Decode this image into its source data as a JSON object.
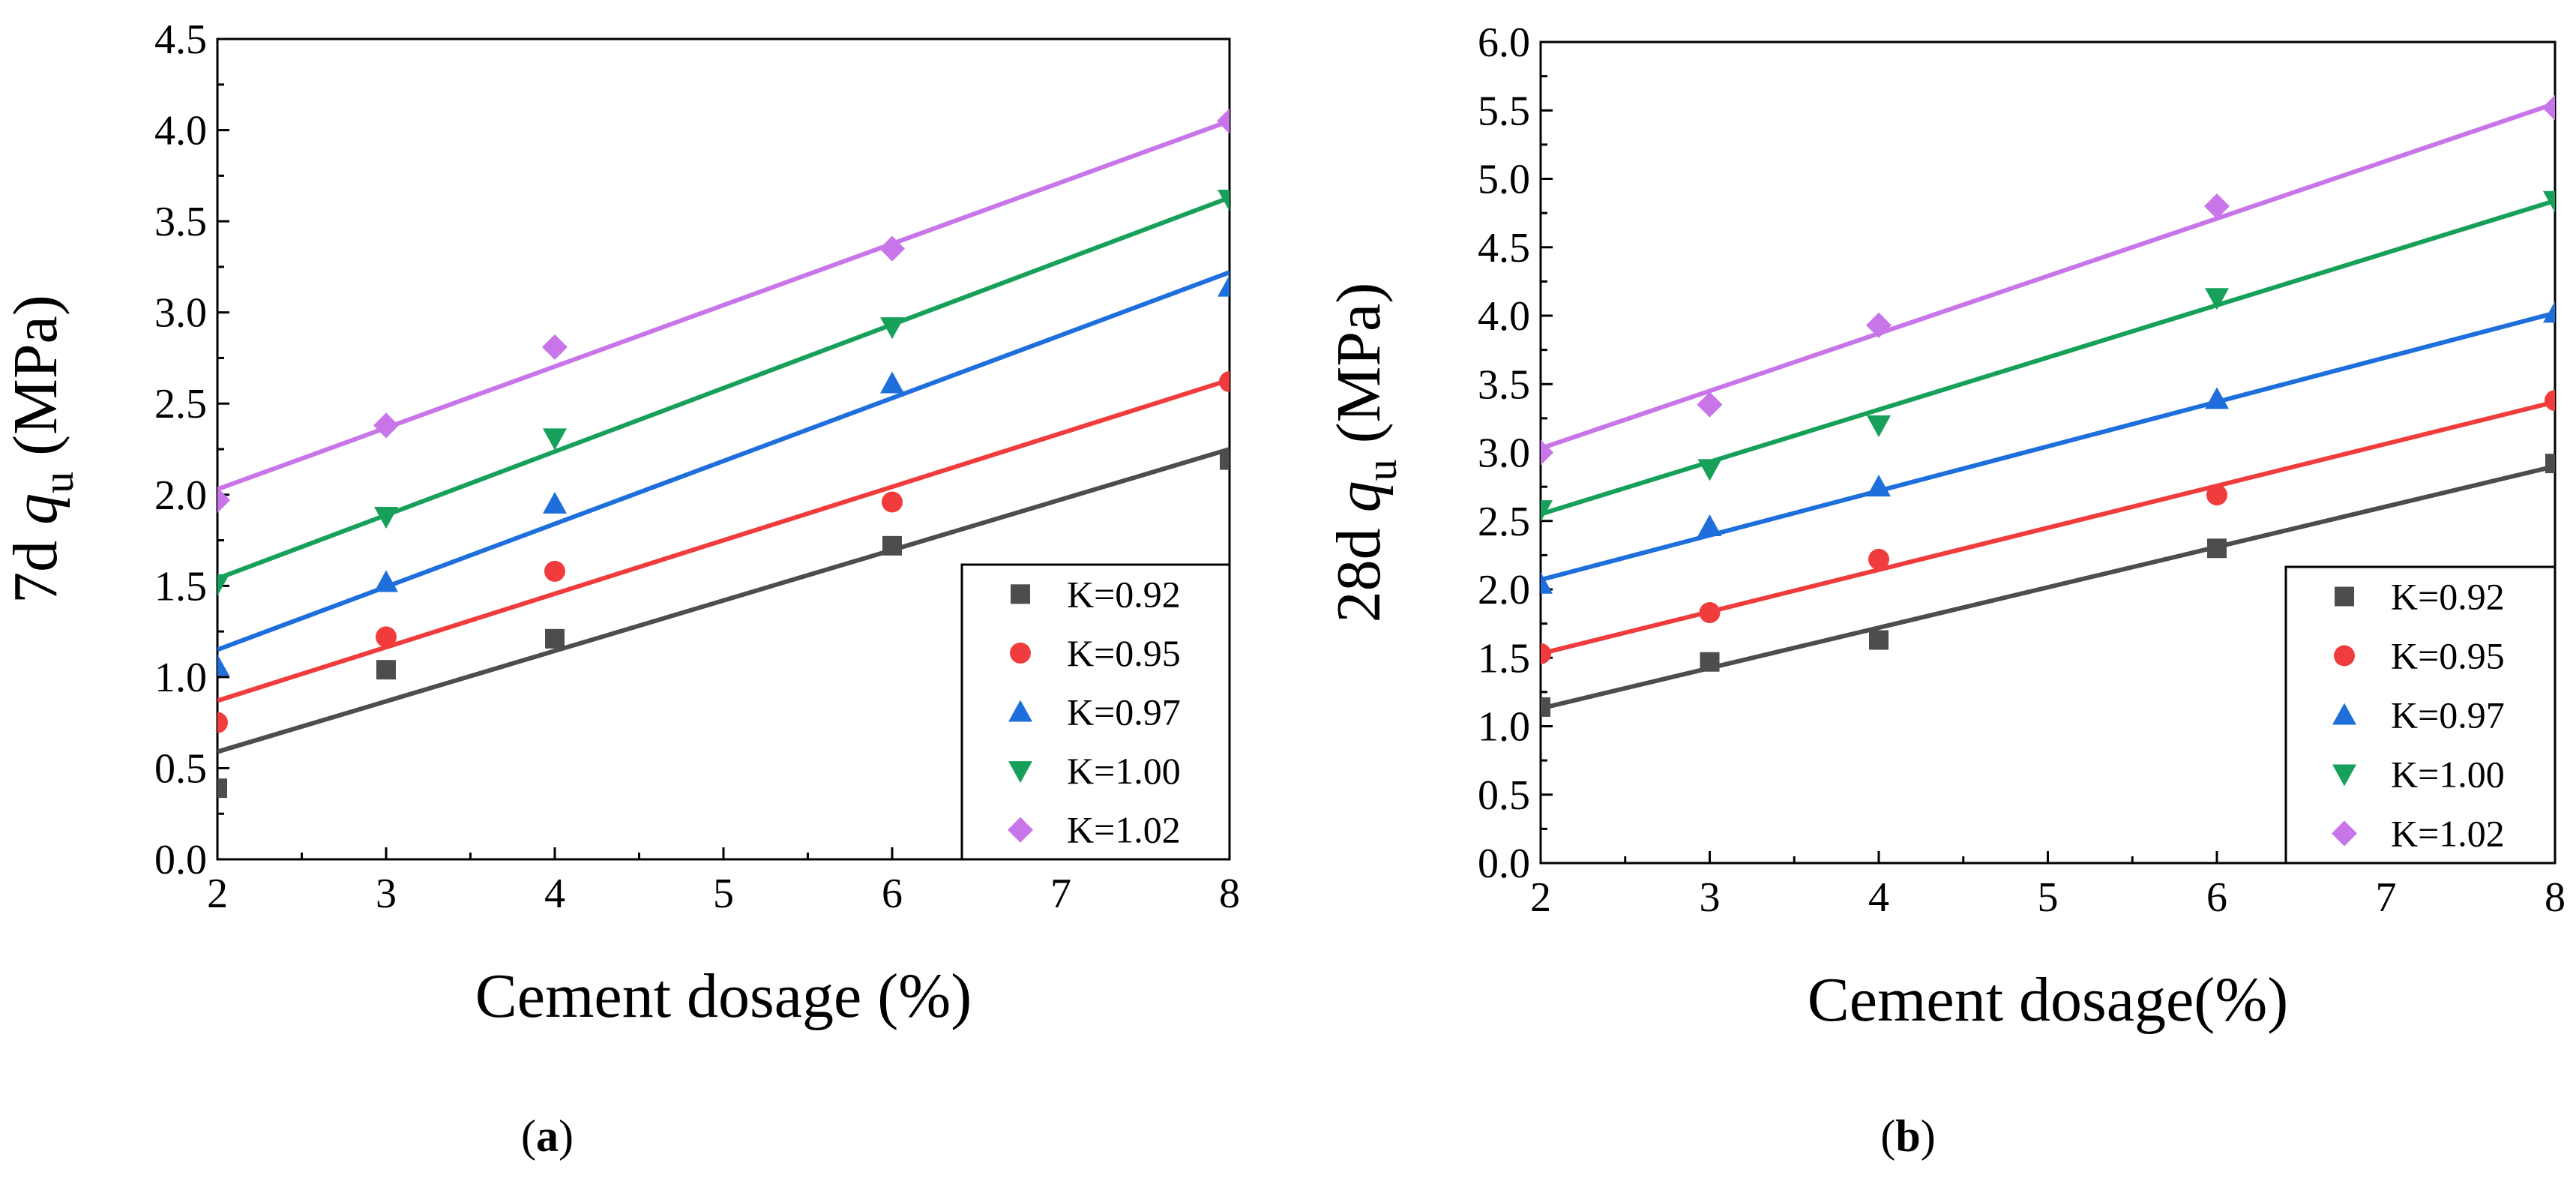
{
  "chart_data": [
    {
      "type": "scatter",
      "panel_label": "a",
      "xlabel": "Cement dosage (%)",
      "ylabel_prefix": "7d ",
      "ylabel_var": "q",
      "ylabel_sub": "u",
      "ylabel_unit": " (MPa)",
      "xlim": [
        2,
        8
      ],
      "ylim": [
        0,
        4.5
      ],
      "x_ticks": [
        2,
        3,
        4,
        5,
        6,
        7,
        8
      ],
      "x_tick_labels": [
        "2",
        "3",
        "4",
        "5",
        "6",
        "7",
        "8"
      ],
      "y_ticks": [
        0,
        0.5,
        1,
        1.5,
        2,
        2.5,
        3,
        3.5,
        4,
        4.5
      ],
      "y_tick_labels": [
        "0.0",
        "0.5",
        "1.0",
        "1.5",
        "2.0",
        "2.5",
        "3.0",
        "3.5",
        "4.0",
        "4.5"
      ],
      "legend_position": "bottom-right",
      "grid": false,
      "series": [
        {
          "name": "K=0.92",
          "color": "#4d4d4d",
          "marker": "square",
          "x": [
            2,
            3,
            4,
            6,
            8
          ],
          "y": [
            0.39,
            1.04,
            1.21,
            1.72,
            2.19
          ],
          "fit": {
            "x": [
              2,
              8
            ],
            "y": [
              0.59,
              2.25
            ]
          }
        },
        {
          "name": "K=0.95",
          "color": "#f03c3c",
          "marker": "circle",
          "x": [
            2,
            3,
            4,
            6,
            8
          ],
          "y": [
            0.75,
            1.22,
            1.58,
            1.96,
            2.62
          ],
          "fit": {
            "x": [
              2,
              8
            ],
            "y": [
              0.87,
              2.63
            ]
          }
        },
        {
          "name": "K=0.97",
          "color": "#1e6fdc",
          "marker": "triangle-up",
          "x": [
            2,
            3,
            4,
            6,
            8
          ],
          "y": [
            1.06,
            1.52,
            1.95,
            2.61,
            3.14
          ],
          "fit": {
            "x": [
              2,
              8
            ],
            "y": [
              1.15,
              3.22
            ]
          }
        },
        {
          "name": "K=1.00",
          "color": "#17a05a",
          "marker": "triangle-down",
          "x": [
            2,
            3,
            4,
            6,
            8
          ],
          "y": [
            1.51,
            1.88,
            2.31,
            2.92,
            3.62
          ],
          "fit": {
            "x": [
              2,
              8
            ],
            "y": [
              1.54,
              3.63
            ]
          }
        },
        {
          "name": "K=1.02",
          "color": "#c775e8",
          "marker": "diamond",
          "x": [
            2,
            3,
            4,
            6,
            8
          ],
          "y": [
            1.97,
            2.38,
            2.81,
            3.35,
            4.05
          ],
          "fit": {
            "x": [
              2,
              8
            ],
            "y": [
              2.03,
              4.05
            ]
          }
        }
      ]
    },
    {
      "type": "scatter",
      "panel_label": "b",
      "xlabel": "Cement dosage(%)",
      "ylabel_prefix": "28d ",
      "ylabel_var": "q",
      "ylabel_sub": "u",
      "ylabel_unit": " (MPa)",
      "xlim": [
        2,
        8
      ],
      "ylim": [
        0,
        6
      ],
      "x_ticks": [
        2,
        3,
        4,
        5,
        6,
        7,
        8
      ],
      "x_tick_labels": [
        "2",
        "3",
        "4",
        "5",
        "6",
        "7",
        "8"
      ],
      "y_ticks": [
        0,
        0.5,
        1,
        1.5,
        2,
        2.5,
        3,
        3.5,
        4,
        4.5,
        5,
        5.5,
        6
      ],
      "y_tick_labels": [
        "0.0",
        "0.5",
        "1.0",
        "1.5",
        "2.0",
        "2.5",
        "3.0",
        "3.5",
        "4.0",
        "4.5",
        "5.0",
        "5.5",
        "6.0"
      ],
      "legend_position": "bottom-right",
      "grid": false,
      "series": [
        {
          "name": "K=0.92",
          "color": "#4d4d4d",
          "marker": "square",
          "x": [
            2,
            3,
            4,
            6,
            8
          ],
          "y": [
            1.14,
            1.47,
            1.63,
            2.3,
            2.92
          ],
          "fit": {
            "x": [
              2,
              8
            ],
            "y": [
              1.13,
              2.9
            ]
          }
        },
        {
          "name": "K=0.95",
          "color": "#f03c3c",
          "marker": "circle",
          "x": [
            2,
            3,
            4,
            6,
            8
          ],
          "y": [
            1.53,
            1.83,
            2.22,
            2.69,
            3.38
          ],
          "fit": {
            "x": [
              2,
              8
            ],
            "y": [
              1.53,
              3.37
            ]
          }
        },
        {
          "name": "K=0.97",
          "color": "#1e6fdc",
          "marker": "triangle-up",
          "x": [
            2,
            3,
            4,
            6,
            8
          ],
          "y": [
            2.04,
            2.46,
            2.75,
            3.39,
            4.02
          ],
          "fit": {
            "x": [
              2,
              8
            ],
            "y": [
              2.07,
              4.02
            ]
          }
        },
        {
          "name": "K=1.00",
          "color": "#17a05a",
          "marker": "triangle-down",
          "x": [
            2,
            3,
            4,
            6,
            8
          ],
          "y": [
            2.58,
            2.88,
            3.2,
            4.13,
            4.84
          ],
          "fit": {
            "x": [
              2,
              8
            ],
            "y": [
              2.55,
              4.84
            ]
          }
        },
        {
          "name": "K=1.02",
          "color": "#c775e8",
          "marker": "diamond",
          "x": [
            2,
            3,
            4,
            6,
            8
          ],
          "y": [
            3.0,
            3.35,
            3.93,
            4.8,
            5.52
          ],
          "fit": {
            "x": [
              2,
              8
            ],
            "y": [
              3.03,
              5.55
            ]
          }
        }
      ]
    }
  ]
}
